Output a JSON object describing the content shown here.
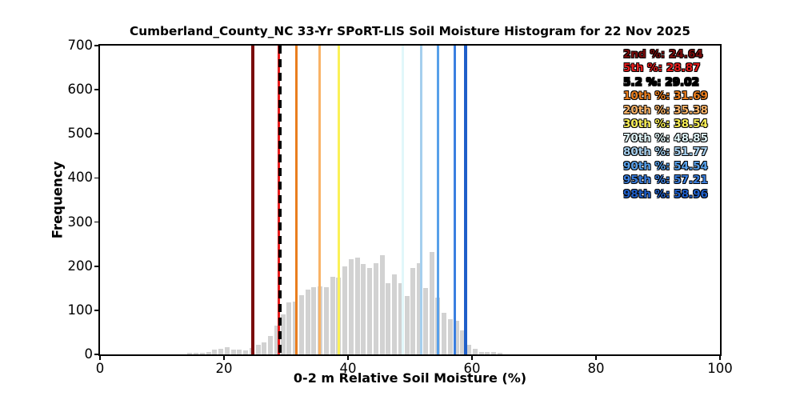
{
  "chart_data": {
    "type": "bar",
    "title": "Cumberland_County_NC 33-Yr SPoRT-LIS Soil Moisture Histogram for 22 Nov 2025",
    "xlabel": "0-2 m Relative Soil Moisture (%)",
    "ylabel": "Frequency",
    "xlim": [
      0,
      100
    ],
    "ylim": [
      0,
      700
    ],
    "grid": false,
    "bar_color": "#d2d2d2",
    "bin_width": 1,
    "bin_start": 14,
    "x_ticks": [
      0,
      20,
      40,
      60,
      80,
      100
    ],
    "y_ticks": [
      0,
      100,
      200,
      300,
      400,
      500,
      600,
      700
    ],
    "frequencies": [
      3,
      3,
      3,
      6,
      10,
      13,
      16,
      11,
      11,
      9,
      14,
      21,
      27,
      42,
      65,
      90,
      118,
      120,
      134,
      146,
      152,
      155,
      152,
      176,
      174,
      200,
      215,
      220,
      205,
      195,
      207,
      224,
      161,
      182,
      161,
      133,
      195,
      207,
      150,
      233,
      128,
      95,
      80,
      76,
      54,
      22,
      13,
      6,
      5,
      5,
      3
    ],
    "percentile_lines": [
      {
        "label": "2nd %",
        "value": 24.64,
        "color": "#7a0c0c",
        "style": "solid"
      },
      {
        "label": "5th %",
        "value": 28.87,
        "color": "#e51c1c",
        "style": "solid"
      },
      {
        "label": "5.2 %",
        "value": 29.02,
        "color": "#000000",
        "style": "dashed"
      },
      {
        "label": "10th %",
        "value": 31.69,
        "color": "#ea7e1e",
        "style": "solid"
      },
      {
        "label": "20th %",
        "value": 35.38,
        "color": "#f9b367",
        "style": "solid"
      },
      {
        "label": "30th %",
        "value": 38.54,
        "color": "#fbf157",
        "style": "solid"
      },
      {
        "label": "70th %",
        "value": 48.85,
        "color": "#e1f7fa",
        "style": "solid"
      },
      {
        "label": "80th %",
        "value": 51.77,
        "color": "#a5cfee",
        "style": "solid"
      },
      {
        "label": "90th %",
        "value": 54.54,
        "color": "#57a0ea",
        "style": "solid"
      },
      {
        "label": "95th %",
        "value": 57.21,
        "color": "#3a7fe0",
        "style": "solid"
      },
      {
        "label": "98th %",
        "value": 58.96,
        "color": "#1f5fc9",
        "style": "solid"
      }
    ],
    "legend_position": "upper right"
  },
  "legend": {
    "items": [
      {
        "text": "2nd %: 24.64",
        "color": "#7a0c0c"
      },
      {
        "text": "5th %: 28.87",
        "color": "#e51c1c"
      },
      {
        "text": "5.2 %: 29.02",
        "color": "#000000"
      },
      {
        "text": "10th %: 31.69",
        "color": "#ea7e1e"
      },
      {
        "text": "20th %: 35.38",
        "color": "#f9b367"
      },
      {
        "text": "30th %: 38.54",
        "color": "#fbf157"
      },
      {
        "text": "70th %: 48.85",
        "color": "#e1f7fa"
      },
      {
        "text": "80th %: 51.77",
        "color": "#a5cfee"
      },
      {
        "text": "90th %: 54.54",
        "color": "#57a0ea"
      },
      {
        "text": "95th %: 57.21",
        "color": "#3a7fe0"
      },
      {
        "text": "98th %: 58.96",
        "color": "#1f5fc9"
      }
    ]
  }
}
